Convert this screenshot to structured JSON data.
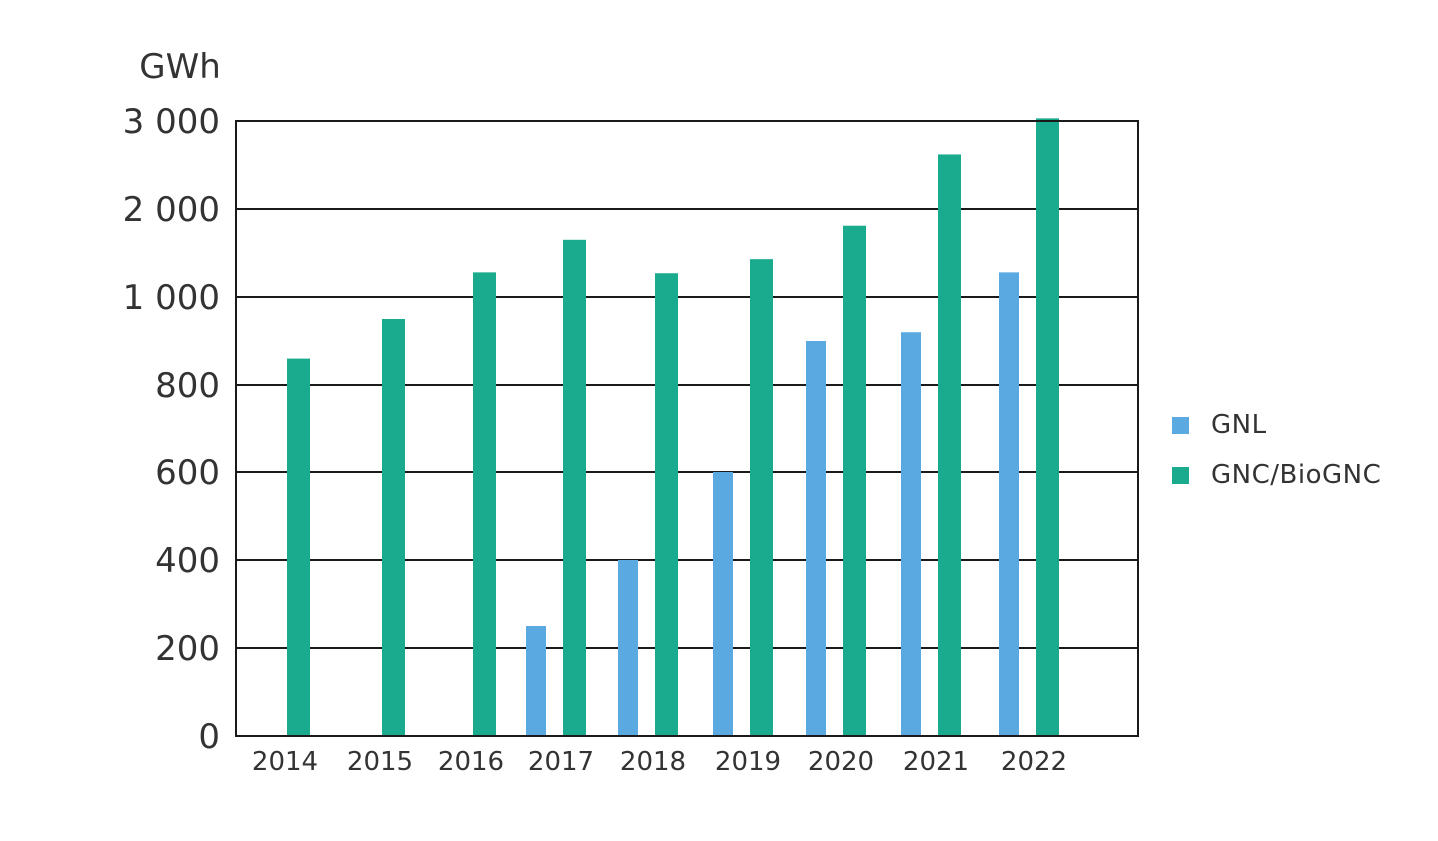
{
  "chart_data": {
    "type": "bar",
    "ylabel": "GWh",
    "y_tick_labels": [
      "0",
      "200",
      "400",
      "600",
      "800",
      "1 000",
      "2 000",
      "3 000"
    ],
    "y_scale": "piecewise: 0–1000 linear segments of 200; 1000–3000 linear segments of 1000",
    "categories": [
      "2014",
      "2015",
      "2016",
      "2017",
      "2018",
      "2019",
      "2020",
      "2021",
      "2022"
    ],
    "series": [
      {
        "name": "GNL",
        "color": "#5aa9e0",
        "values": [
          0,
          0,
          0,
          250,
          400,
          600,
          900,
          920,
          1280
        ]
      },
      {
        "name": "GNC/BioGNC",
        "color": "#1aab8e",
        "values": [
          860,
          950,
          1280,
          1650,
          1270,
          1430,
          1810,
          2620,
          3030
        ]
      }
    ],
    "grid": "horizontal",
    "legend_position": "right"
  }
}
